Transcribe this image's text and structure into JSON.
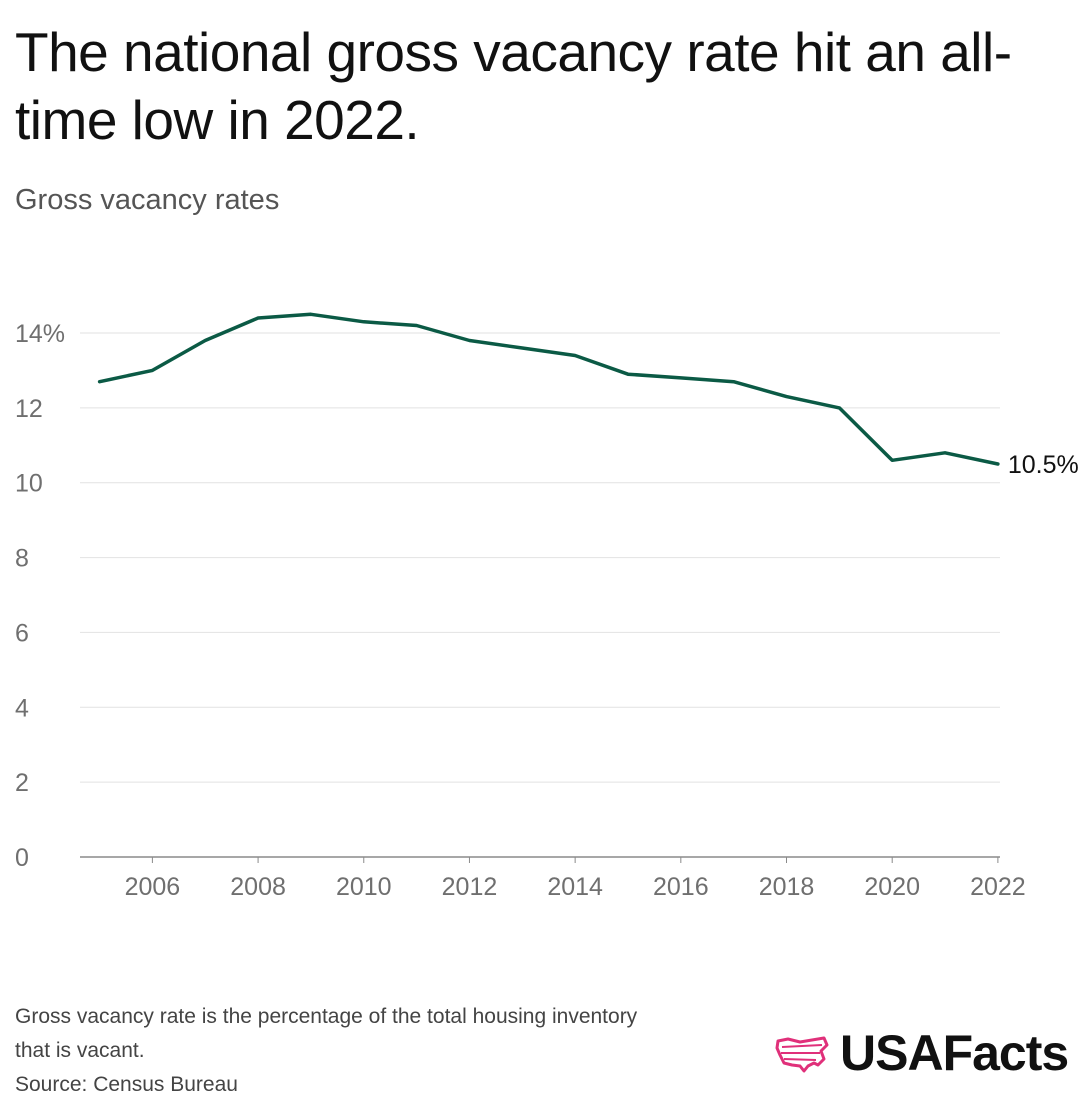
{
  "header": {
    "title": "The national gross vacancy rate hit an all-time low in 2022.",
    "subtitle": "Gross vacancy rates"
  },
  "colors": {
    "line": "#0b5a45",
    "grid": "#e2e2e2",
    "axis": "#8a8a8a",
    "brand_accent": "#e0307a"
  },
  "chart_data": {
    "type": "line",
    "title": "The national gross vacancy rate hit an all-time low in 2022.",
    "subtitle": "Gross vacancy rates",
    "xlabel": "",
    "ylabel": "",
    "x": [
      2005,
      2006,
      2007,
      2008,
      2009,
      2010,
      2011,
      2012,
      2013,
      2014,
      2015,
      2016,
      2017,
      2018,
      2019,
      2020,
      2021,
      2022
    ],
    "series": [
      {
        "name": "Gross vacancy rate",
        "values": [
          12.7,
          13.0,
          13.8,
          14.4,
          14.5,
          14.3,
          14.2,
          13.8,
          13.6,
          13.4,
          12.9,
          12.8,
          12.7,
          12.3,
          12.0,
          10.6,
          10.8,
          10.5
        ]
      }
    ],
    "ylim": [
      0,
      14
    ],
    "xlim": [
      2004.63,
      2022.04
    ],
    "y_ticks": [
      "0",
      "2",
      "4",
      "6",
      "8",
      "10",
      "12",
      "14%"
    ],
    "y_tick_values": [
      0,
      2,
      4,
      6,
      8,
      10,
      12,
      14
    ],
    "x_ticks": [
      "2006",
      "2008",
      "2010",
      "2012",
      "2014",
      "2016",
      "2018",
      "2020",
      "2022"
    ],
    "x_tick_values": [
      2006,
      2008,
      2010,
      2012,
      2014,
      2016,
      2018,
      2020,
      2022
    ],
    "end_label": "10.5%",
    "grid": true,
    "legend": "none"
  },
  "footer": {
    "note_line1": "Gross vacancy rate is the percentage of the total housing inventory",
    "note_line2": "that is vacant.",
    "source": "Source: Census Bureau",
    "brand": "USAFacts"
  }
}
